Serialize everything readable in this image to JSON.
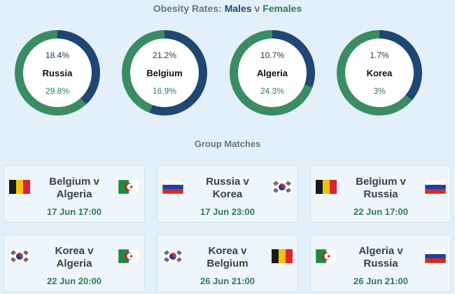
{
  "title": {
    "prefix": "Obesity Rates:",
    "males": "Males",
    "v": "v",
    "females": "Females"
  },
  "colors": {
    "male": "#1f4675",
    "female": "#3a8c63",
    "background": "#e3f0fa"
  },
  "chart_data": {
    "type": "pie",
    "subtype": "donut",
    "title": "Obesity Rates: Males v Females",
    "series_names": [
      "Males",
      "Females"
    ],
    "countries": [
      {
        "name": "Russia",
        "male": 18.4,
        "female": 29.8,
        "male_label": "18.4%",
        "female_label": "29.8%"
      },
      {
        "name": "Belgium",
        "male": 21.2,
        "female": 16.9,
        "male_label": "21.2%",
        "female_label": "16.9%"
      },
      {
        "name": "Algeria",
        "male": 10.7,
        "female": 24.3,
        "male_label": "10.7%",
        "female_label": "24.3%"
      },
      {
        "name": "Korea",
        "male": 1.7,
        "female": 3,
        "male_label": "1.7%",
        "female_label": "3%"
      }
    ]
  },
  "matches_title": "Group Matches",
  "matches": [
    {
      "home": "Belgium",
      "away": "Algeria",
      "home_flag": "belgium-flag-icon",
      "away_flag": "algeria-flag-icon",
      "line1": "Belgium v",
      "line2": "Algeria",
      "time": "17 Jun 17:00"
    },
    {
      "home": "Russia",
      "away": "Korea",
      "home_flag": "russia-flag-icon",
      "away_flag": "korea-flag-icon",
      "line1": "Russia v",
      "line2": "Korea",
      "time": "17 Jun 23:00"
    },
    {
      "home": "Belgium",
      "away": "Russia",
      "home_flag": "belgium-flag-icon",
      "away_flag": "russia-flag-icon",
      "line1": "Belgium v",
      "line2": "Russia",
      "time": "22 Jun 17:00"
    },
    {
      "home": "Korea",
      "away": "Algeria",
      "home_flag": "korea-flag-icon",
      "away_flag": "algeria-flag-icon",
      "line1": "Korea v",
      "line2": "Algeria",
      "time": "22 Jun 20:00"
    },
    {
      "home": "Korea",
      "away": "Belgium",
      "home_flag": "korea-flag-icon",
      "away_flag": "belgium-flag-icon",
      "line1": "Korea v",
      "line2": "Belgium",
      "time": "26 Jun 21:00"
    },
    {
      "home": "Algeria",
      "away": "Russia",
      "home_flag": "algeria-flag-icon",
      "away_flag": "russia-flag-icon",
      "line1": "Algeria v",
      "line2": "Russia",
      "time": "26 Jun 21:00"
    }
  ]
}
